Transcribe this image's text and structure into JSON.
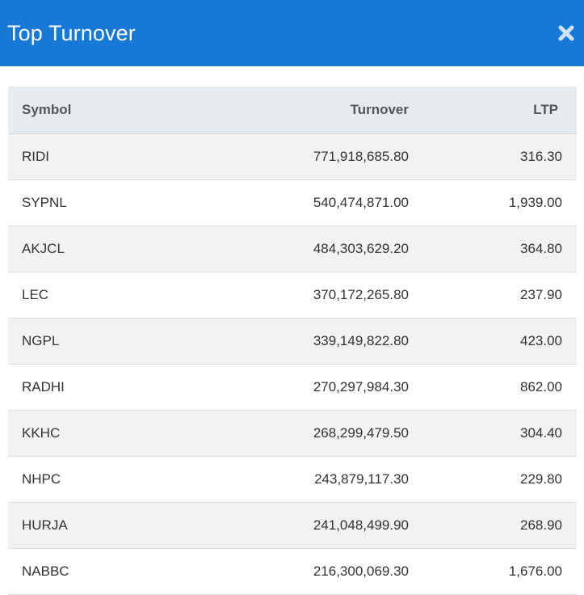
{
  "header": {
    "title": "Top Turnover",
    "close_icon": "close-icon",
    "background_color": "#1878d6"
  },
  "table": {
    "columns": {
      "symbol": "Symbol",
      "turnover": "Turnover",
      "ltp": "LTP"
    },
    "rows": [
      {
        "symbol": "RIDI",
        "turnover": "771,918,685.80",
        "ltp": "316.30"
      },
      {
        "symbol": "SYPNL",
        "turnover": "540,474,871.00",
        "ltp": "1,939.00"
      },
      {
        "symbol": "AKJCL",
        "turnover": "484,303,629.20",
        "ltp": "364.80"
      },
      {
        "symbol": "LEC",
        "turnover": "370,172,265.80",
        "ltp": "237.90"
      },
      {
        "symbol": "NGPL",
        "turnover": "339,149,822.80",
        "ltp": "423.00"
      },
      {
        "symbol": "RADHI",
        "turnover": "270,297,984.30",
        "ltp": "862.00"
      },
      {
        "symbol": "KKHC",
        "turnover": "268,299,479.50",
        "ltp": "304.40"
      },
      {
        "symbol": "NHPC",
        "turnover": "243,879,117.30",
        "ltp": "229.80"
      },
      {
        "symbol": "HURJA",
        "turnover": "241,048,499.90",
        "ltp": "268.90"
      },
      {
        "symbol": "NABBC",
        "turnover": "216,300,069.30",
        "ltp": "1,676.00"
      }
    ]
  }
}
